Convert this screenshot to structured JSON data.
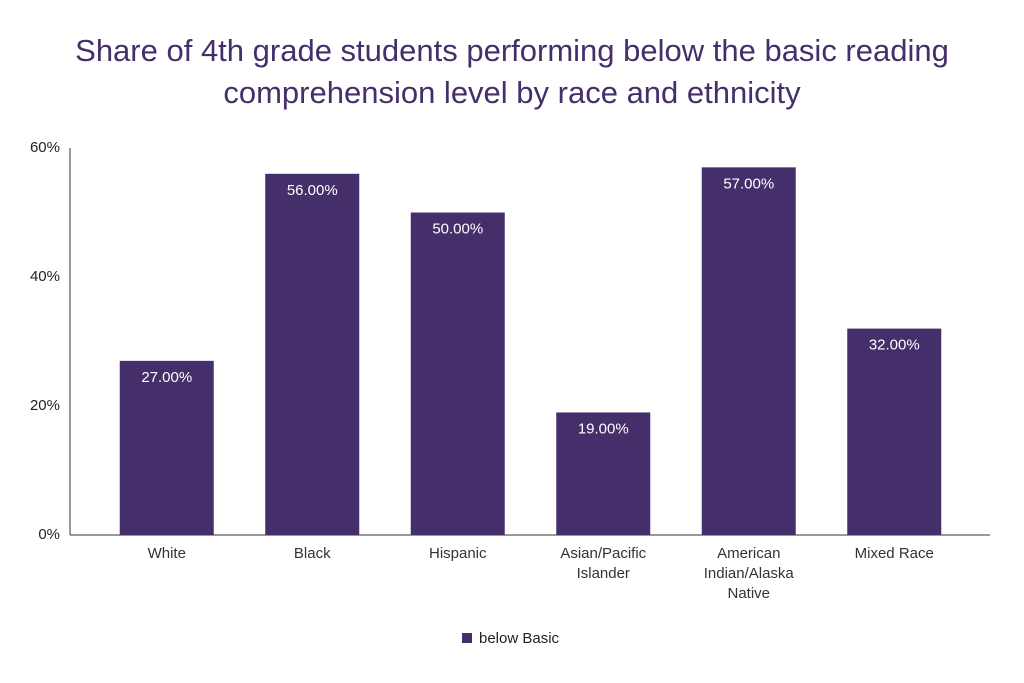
{
  "chart_data": {
    "type": "bar",
    "title": "Share of 4th grade students performing below the basic reading comprehension level by race and ethnicity",
    "categories": [
      "White",
      "Black",
      "Hispanic",
      "Asian/Pacific Islander",
      "American Indian/Alaska Native",
      "Mixed Race"
    ],
    "series": [
      {
        "name": "below Basic",
        "color": "#452f6b",
        "values": [
          27,
          56,
          50,
          19,
          57,
          32
        ],
        "value_labels": [
          "27.00%",
          "56.00%",
          "50.00%",
          "19.00%",
          "57.00%",
          "32.00%"
        ]
      }
    ],
    "ylim": [
      0,
      60
    ],
    "yticks": [
      {
        "value": 0,
        "label": "0%"
      },
      {
        "value": 20,
        "label": "20%"
      },
      {
        "value": 40,
        "label": "40%"
      },
      {
        "value": 60,
        "label": "60%"
      }
    ],
    "grid": false
  }
}
